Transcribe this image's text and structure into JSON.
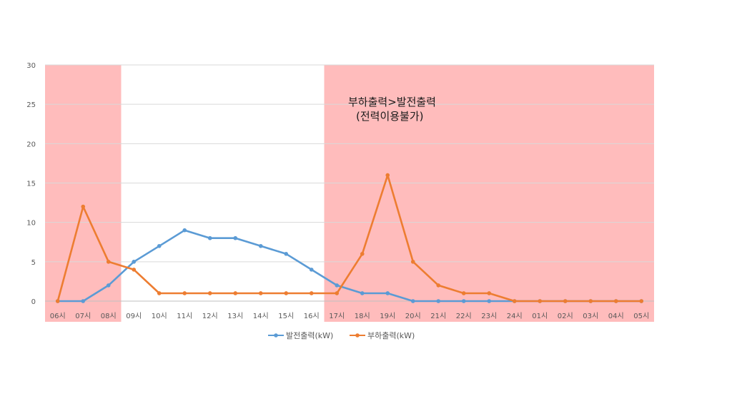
{
  "chart_data": {
    "type": "line",
    "categories": [
      "06시",
      "07시",
      "08시",
      "09시",
      "10시",
      "11시",
      "12시",
      "13시",
      "14시",
      "15시",
      "16시",
      "17시",
      "18시",
      "19시",
      "20시",
      "21시",
      "22시",
      "23시",
      "24시",
      "01시",
      "02시",
      "03시",
      "04시",
      "05시"
    ],
    "ylim": [
      0,
      30
    ],
    "yticks": [
      0,
      5,
      10,
      15,
      20,
      25,
      30
    ],
    "grid": true,
    "legend_position": "bottom",
    "series": [
      {
        "name": "발전출력(kW)",
        "color": "#5b9bd5",
        "values": [
          0,
          0,
          2,
          5,
          7,
          9,
          8,
          8,
          7,
          6,
          4,
          2,
          1,
          1,
          0,
          0,
          0,
          0,
          0,
          0,
          0,
          0,
          0,
          0
        ]
      },
      {
        "name": "부하출력(kW)",
        "color": "#ed7d31",
        "values": [
          0,
          12,
          5,
          4,
          1,
          1,
          1,
          1,
          1,
          1,
          1,
          1,
          6,
          16,
          5,
          2,
          1,
          1,
          0,
          0,
          0,
          0,
          0,
          0
        ]
      }
    ],
    "shaded_regions": [
      {
        "from": "06시",
        "to": "08시",
        "color": "#ffbcbc"
      },
      {
        "from": "17시",
        "to": "05시",
        "color": "#ffbcbc"
      }
    ],
    "annotation": {
      "line1": "부하출력>발전출력",
      "line2": "(전력이용불가)"
    }
  }
}
